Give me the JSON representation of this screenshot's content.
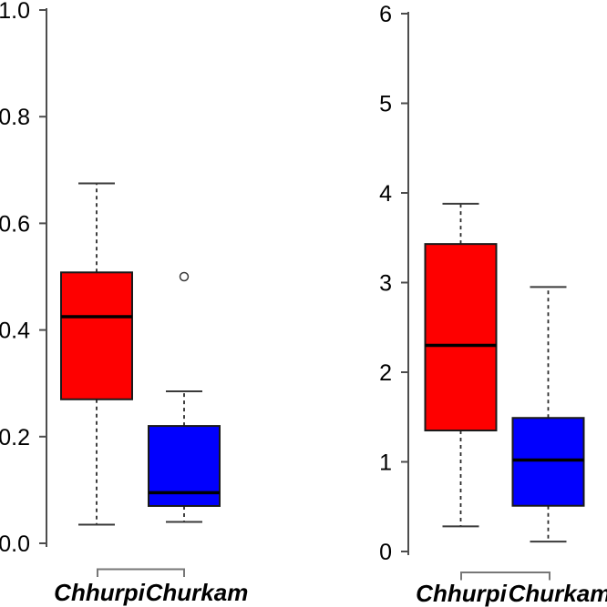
{
  "figure": {
    "background": "#ffffff",
    "style": {
      "axis_color": "#4d4d4d",
      "bracket_color": "#777777",
      "whisker_color": "#2a2a2a",
      "cap_color": "#3a3a3a",
      "box_border_color": "#1a1a1a",
      "median_color": "#000000",
      "outlier_stroke": "#3a3a3a",
      "label_color": "#000000"
    }
  },
  "chart_data": [
    {
      "type": "boxplot",
      "panel": "left",
      "title": "",
      "xlabel": "",
      "ylabel": "",
      "ylim": [
        0.0,
        1.0
      ],
      "yticks": [
        0.0,
        0.2,
        0.4,
        0.6,
        0.8,
        1.0
      ],
      "ytick_labels": [
        "0.0",
        "0.2",
        "0.4",
        "0.6",
        "0.8",
        "1.0"
      ],
      "categories": [
        "Chhurpi",
        "Churkam"
      ],
      "grid": false,
      "legend": "none",
      "series": [
        {
          "name": "Chhurpi",
          "color": "#fe0000",
          "min": 0.035,
          "q1": 0.27,
          "median": 0.425,
          "q3": 0.508,
          "max": 0.675,
          "outliers": []
        },
        {
          "name": "Churkam",
          "color": "#0100fe",
          "min": 0.04,
          "q1": 0.07,
          "median": 0.095,
          "q3": 0.22,
          "max": 0.285,
          "outliers": [
            0.5
          ]
        }
      ]
    },
    {
      "type": "boxplot",
      "panel": "right",
      "title": "",
      "xlabel": "",
      "ylabel": "",
      "ylim": [
        0,
        6
      ],
      "yticks": [
        0,
        1,
        2,
        3,
        4,
        5,
        6
      ],
      "ytick_labels": [
        "0",
        "1",
        "2",
        "3",
        "4",
        "5",
        "6"
      ],
      "categories": [
        "Chhurpi",
        "Churkam"
      ],
      "grid": false,
      "legend": "none",
      "series": [
        {
          "name": "Chhurpi",
          "color": "#fe0000",
          "min": 0.28,
          "q1": 1.35,
          "median": 2.3,
          "q3": 3.43,
          "max": 3.88,
          "outliers": []
        },
        {
          "name": "Churkam",
          "color": "#0100fe",
          "min": 0.11,
          "q1": 0.51,
          "median": 1.02,
          "q3": 1.49,
          "max": 2.95,
          "outliers": []
        }
      ]
    }
  ]
}
